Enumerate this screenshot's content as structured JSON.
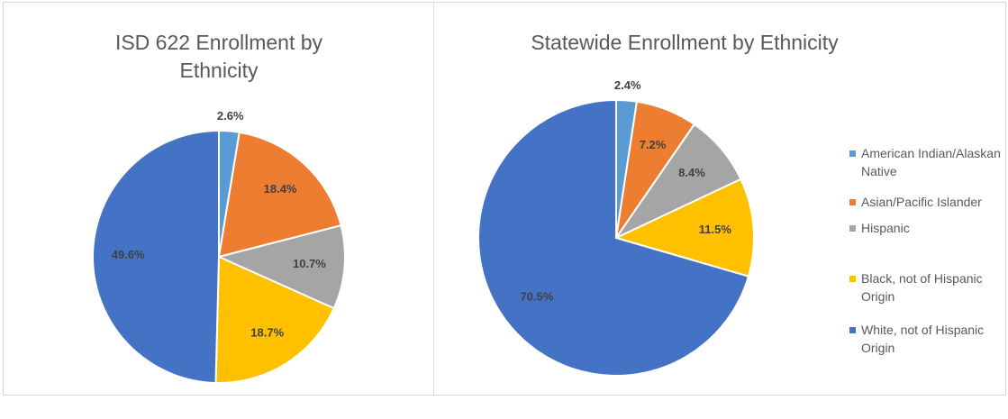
{
  "chart_data": [
    {
      "type": "pie",
      "title": "ISD 622 Enrollment by Ethnicity",
      "values": [
        2.6,
        18.4,
        10.7,
        18.7,
        49.6
      ],
      "value_labels": [
        "2.6%",
        "18.4%",
        "10.7%",
        "18.7%",
        "49.6%"
      ],
      "colors": [
        "#5B9BD5",
        "#ED7D31",
        "#A5A5A5",
        "#FFC000",
        "#4472C4"
      ]
    },
    {
      "type": "pie",
      "title": "Statewide Enrollment by Ethnicity",
      "categories": [
        "American Indian/Alaskan Native",
        "Asian/Pacific Islander",
        "Hispanic",
        "Black, not of Hispanic Origin",
        "White, not of Hispanic Origin"
      ],
      "values": [
        2.4,
        7.2,
        8.4,
        11.5,
        70.5
      ],
      "value_labels": [
        "2.4%",
        "7.2%",
        "8.4%",
        "11.5%",
        "70.5%"
      ],
      "colors": [
        "#5B9BD5",
        "#ED7D31",
        "#A5A5A5",
        "#FFC000",
        "#4472C4"
      ],
      "legend": "right"
    }
  ]
}
